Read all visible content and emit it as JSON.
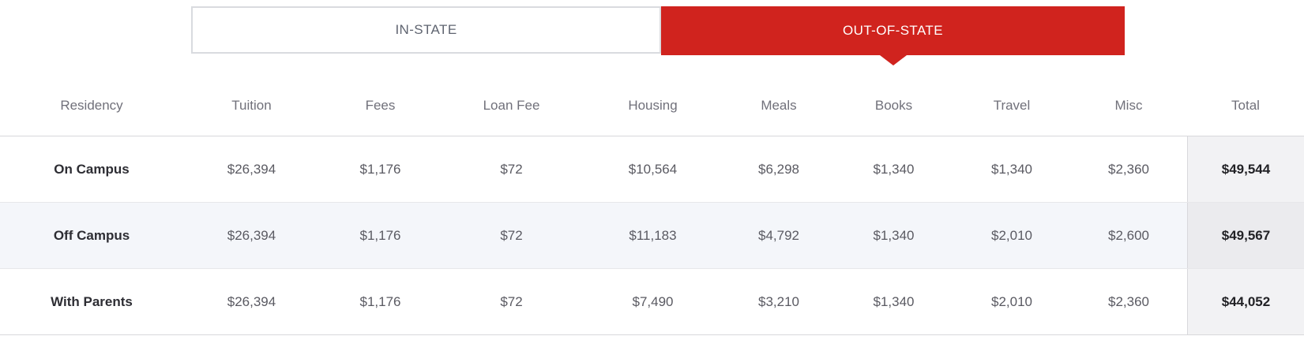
{
  "colors": {
    "accent": "#d0231e",
    "stripe_row": "#f4f6fa",
    "total_column_bg": "#f2f2f4"
  },
  "tabs": [
    {
      "label": "IN-STATE",
      "active": false
    },
    {
      "label": "OUT-OF-STATE",
      "active": true
    }
  ],
  "table": {
    "columns": [
      "Residency",
      "Tuition",
      "Fees",
      "Loan Fee",
      "Housing",
      "Meals",
      "Books",
      "Travel",
      "Misc",
      "Total"
    ],
    "rows": [
      {
        "residency": "On Campus",
        "values": [
          "$26,394",
          "$1,176",
          "$72",
          "$10,564",
          "$6,298",
          "$1,340",
          "$1,340",
          "$2,360"
        ],
        "total": "$49,544"
      },
      {
        "residency": "Off Campus",
        "values": [
          "$26,394",
          "$1,176",
          "$72",
          "$11,183",
          "$4,792",
          "$1,340",
          "$2,010",
          "$2,600"
        ],
        "total": "$49,567"
      },
      {
        "residency": "With Parents",
        "values": [
          "$26,394",
          "$1,176",
          "$72",
          "$7,490",
          "$3,210",
          "$1,340",
          "$2,010",
          "$2,360"
        ],
        "total": "$44,052"
      }
    ]
  }
}
